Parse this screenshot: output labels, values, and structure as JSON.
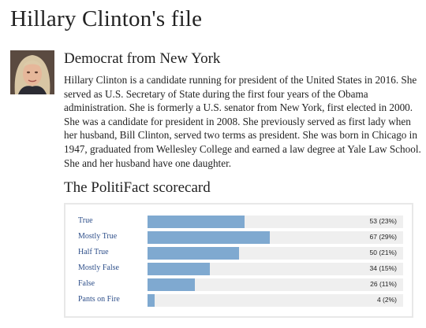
{
  "page": {
    "title": "Hillary Clinton's file"
  },
  "profile": {
    "party_state": "Democrat from New York",
    "bio": "Hillary Clinton is a candidate running for president of the United States in 2016. She served as U.S. Secretary of State during the first four years of the Obama administration. She is formerly a U.S. senator from New York, first elected in 2000. She was a candidate for president in 2008. She previously served as first lady when her husband, Bill Clinton, served two terms as president. She was born in Chicago in 1947, graduated from Wellesley College and earned a law degree at Yale Law School. She and her husband have one daughter."
  },
  "scorecard": {
    "title": "The PolitiFact scorecard",
    "bar_color": "#7fa9d0",
    "scale_max": 140,
    "rows": [
      {
        "label": "True",
        "count": 53,
        "text": "53 (23%)"
      },
      {
        "label": "Mostly True",
        "count": 67,
        "text": "67 (29%)"
      },
      {
        "label": "Half True",
        "count": 50,
        "text": "50 (21%)"
      },
      {
        "label": "Mostly False",
        "count": 34,
        "text": "34 (15%)"
      },
      {
        "label": "False",
        "count": 26,
        "text": "26 (11%)"
      },
      {
        "label": "Pants on Fire",
        "count": 4,
        "text": "4 (2%)"
      }
    ]
  }
}
